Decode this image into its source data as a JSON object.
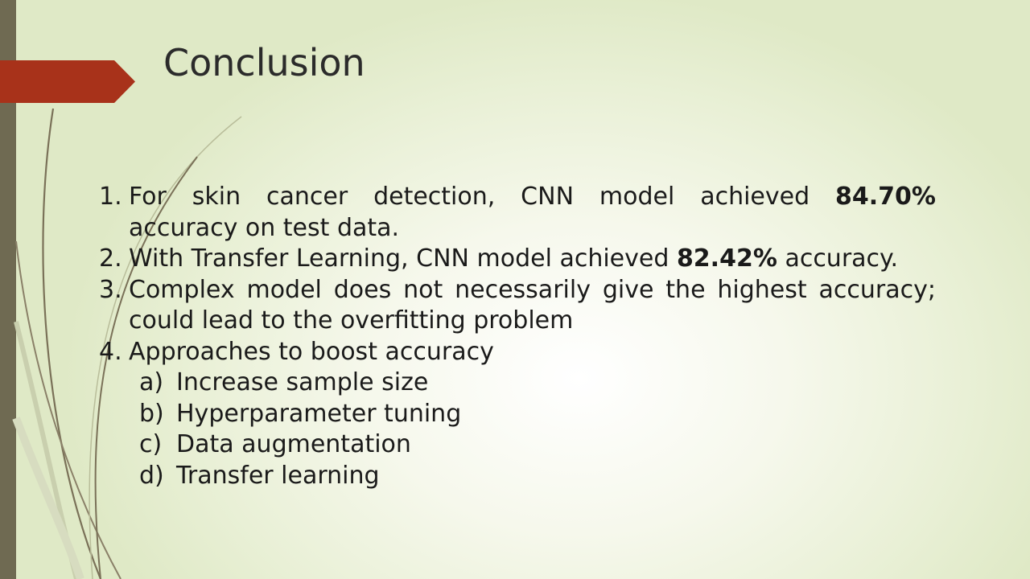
{
  "slide": {
    "title": "Conclusion",
    "items": [
      {
        "number": "1.",
        "line1_pre": "For skin cancer detection, CNN model achieved",
        "line1_bold": "84.70%",
        "line2": "accuracy on test data."
      },
      {
        "number": "2.",
        "pre": "With Transfer Learning, CNN model achieved",
        "bold": "82.42%",
        "post": "accuracy."
      },
      {
        "number": "3.",
        "line1": "Complex model does not necessarily give the highest accuracy;",
        "line2": "could lead to the overfitting problem"
      },
      {
        "number": "4.",
        "text": "Approaches to boost accuracy",
        "subitems": [
          {
            "letter": "a)",
            "text": "Increase sample size"
          },
          {
            "letter": "b)",
            "text": "Hyperparameter tuning"
          },
          {
            "letter": "c)",
            "text": "Data augmentation"
          },
          {
            "letter": "d)",
            "text": "Transfer learning"
          }
        ]
      }
    ]
  },
  "colors": {
    "accent_arrow": "#a8321a",
    "side_bar": "#6f6a52",
    "background": "#e9f0d6"
  },
  "icons": {
    "title_marker": "arrow-pentagon-icon"
  }
}
